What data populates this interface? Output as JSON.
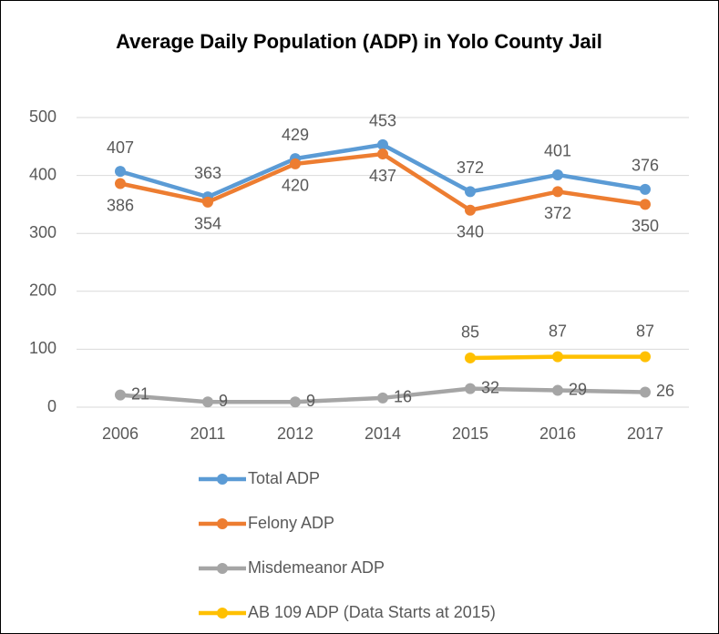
{
  "chart_data": {
    "type": "line",
    "title": "Average Daily Population (ADP) in Yolo County Jail",
    "categories": [
      "2006",
      "2011",
      "2012",
      "2014",
      "2015",
      "2016",
      "2017"
    ],
    "series": [
      {
        "name": "Total ADP",
        "color": "#5b9bd5",
        "values": [
          407,
          363,
          429,
          453,
          372,
          401,
          376
        ]
      },
      {
        "name": "Felony ADP",
        "color": "#ed7d31",
        "values": [
          386,
          354,
          420,
          437,
          340,
          372,
          350
        ]
      },
      {
        "name": "Misdemeanor ADP",
        "color": "#a5a5a5",
        "values": [
          21,
          9,
          9,
          16,
          32,
          29,
          26
        ]
      },
      {
        "name": "AB 109 ADP (Data Starts at 2015)",
        "color": "#ffc000",
        "values": [
          null,
          null,
          null,
          null,
          85,
          87,
          87
        ]
      }
    ],
    "ylim": [
      0,
      500
    ],
    "yticks": [
      0,
      100,
      200,
      300,
      400,
      500
    ],
    "grid": true,
    "legend": "bottom"
  }
}
